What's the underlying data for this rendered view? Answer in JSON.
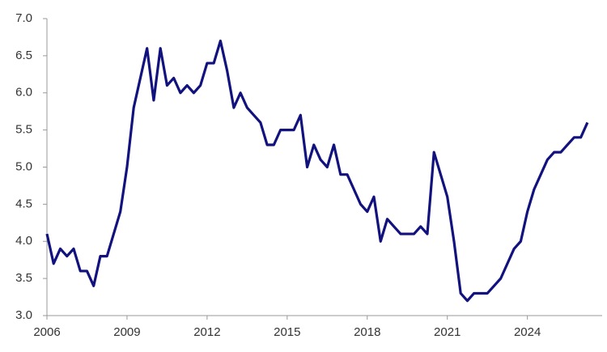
{
  "chart_data": {
    "type": "line",
    "x": [
      2006,
      2006.25,
      2006.5,
      2006.75,
      2007,
      2007.25,
      2007.5,
      2007.75,
      2008,
      2008.25,
      2008.5,
      2008.75,
      2009,
      2009.25,
      2009.5,
      2009.75,
      2010,
      2010.25,
      2010.5,
      2010.75,
      2011,
      2011.25,
      2011.5,
      2011.75,
      2012,
      2012.25,
      2012.5,
      2012.75,
      2013,
      2013.25,
      2013.5,
      2013.75,
      2014,
      2014.25,
      2014.5,
      2014.75,
      2015,
      2015.25,
      2015.5,
      2015.75,
      2016,
      2016.25,
      2016.5,
      2016.75,
      2017,
      2017.25,
      2017.5,
      2017.75,
      2018,
      2018.25,
      2018.5,
      2018.75,
      2019,
      2019.25,
      2019.5,
      2019.75,
      2020,
      2020.25,
      2020.5,
      2020.75,
      2021,
      2021.25,
      2021.5,
      2021.75,
      2022,
      2022.25,
      2022.5,
      2022.75,
      2023,
      2023.25,
      2023.5,
      2023.75,
      2024,
      2024.25,
      2024.5,
      2024.75,
      2025,
      2025.25,
      2025.5,
      2025.75,
      2026,
      2026.25
    ],
    "series": [
      {
        "color": "#12127f",
        "values": [
          4.1,
          3.7,
          3.9,
          3.8,
          3.9,
          3.6,
          3.6,
          3.4,
          3.8,
          3.8,
          4.1,
          4.4,
          5.0,
          5.8,
          6.2,
          6.6,
          5.9,
          6.6,
          6.1,
          6.2,
          6.0,
          6.1,
          6.0,
          6.1,
          6.4,
          6.4,
          6.7,
          6.3,
          5.8,
          6.0,
          5.8,
          5.7,
          5.6,
          5.3,
          5.3,
          5.5,
          5.5,
          5.5,
          5.7,
          5.0,
          5.3,
          5.1,
          5.0,
          5.3,
          4.9,
          4.9,
          4.7,
          4.5,
          4.4,
          4.6,
          4.0,
          4.3,
          4.2,
          4.1,
          4.1,
          4.1,
          4.2,
          4.1,
          5.2,
          4.9,
          4.6,
          4.0,
          3.3,
          3.2,
          3.3,
          3.3,
          3.3,
          3.4,
          3.5,
          3.7,
          3.9,
          4.0,
          4.4,
          4.7,
          4.9,
          5.1,
          5.2,
          5.2,
          5.3,
          5.4,
          5.4,
          5.6
        ]
      }
    ],
    "xlim": [
      2006,
      2026.8
    ],
    "xticks": [
      2006,
      2009,
      2012,
      2015,
      2018,
      2021,
      2024
    ],
    "ylim": [
      3,
      7
    ],
    "yticks": [
      {
        "value": 3,
        "label": "3.0"
      },
      {
        "value": 3.5,
        "label": "3.5"
      },
      {
        "value": 4,
        "label": "4.0"
      },
      {
        "value": 4.5,
        "label": "4.5"
      },
      {
        "value": 5,
        "label": "5.0"
      },
      {
        "value": 5.5,
        "label": "5.5"
      },
      {
        "value": 6,
        "label": "6.0"
      },
      {
        "value": 6.5,
        "label": "6.5"
      },
      {
        "value": 7,
        "label": "7.0"
      }
    ],
    "grid": false
  }
}
